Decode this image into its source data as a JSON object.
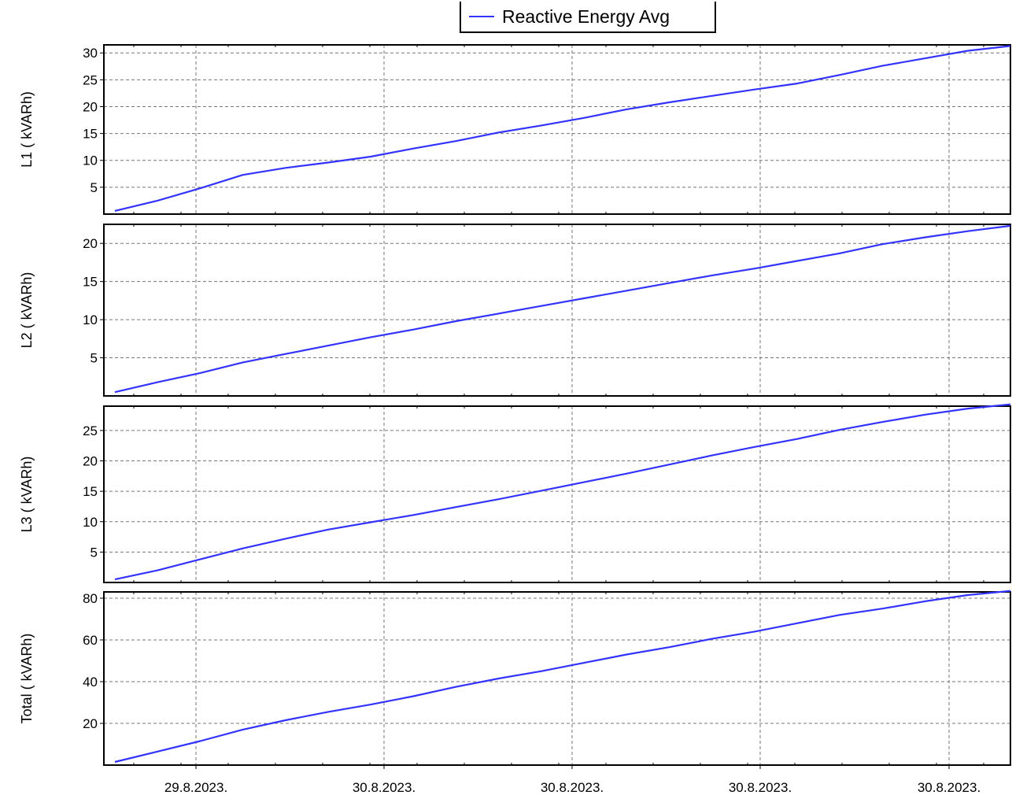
{
  "legend": {
    "label": "Reactive Energy Avg",
    "color": "#3333ff"
  },
  "chart_data": [
    {
      "type": "line",
      "ylabel": "L1 ( kVARh)",
      "y_ticks": [
        5,
        10,
        15,
        20,
        25,
        30
      ],
      "ylim": [
        0,
        31.5
      ],
      "x_tick_labels": [
        "29.8.2023.",
        "30.8.2023.",
        "30.8.2023.",
        "30.8.2023.",
        "30.8.2023."
      ],
      "series": [
        {
          "values": [
            0.6,
            2.5,
            4.8,
            7.3,
            8.6,
            9.6,
            10.7,
            12.2,
            13.6,
            15.2,
            16.5,
            17.9,
            19.5,
            20.8,
            22.0,
            23.2,
            24.3,
            25.9,
            27.6,
            29.0,
            30.4,
            31.3
          ]
        }
      ]
    },
    {
      "type": "line",
      "ylabel": "L2 ( kVARh)",
      "y_ticks": [
        5,
        10,
        15,
        20
      ],
      "ylim": [
        0,
        22.5
      ],
      "x_tick_labels": [
        "29.8.2023.",
        "30.8.2023.",
        "30.8.2023.",
        "30.8.2023.",
        "30.8.2023."
      ],
      "series": [
        {
          "values": [
            0.5,
            1.8,
            3.0,
            4.4,
            5.5,
            6.6,
            7.7,
            8.7,
            9.8,
            10.8,
            11.8,
            12.8,
            13.8,
            14.8,
            15.8,
            16.7,
            17.7,
            18.7,
            19.9,
            20.8,
            21.6,
            22.3
          ]
        }
      ]
    },
    {
      "type": "line",
      "ylabel": "L3 ( kVARh)",
      "y_ticks": [
        5,
        10,
        15,
        20,
        25
      ],
      "ylim": [
        0,
        29
      ],
      "x_tick_labels": [
        "29.8.2023.",
        "30.8.2023.",
        "30.8.2023.",
        "30.8.2023.",
        "30.8.2023."
      ],
      "series": [
        {
          "values": [
            0.5,
            2.0,
            3.8,
            5.6,
            7.2,
            8.7,
            9.9,
            11.1,
            12.4,
            13.7,
            15.1,
            16.5,
            17.9,
            19.4,
            20.9,
            22.3,
            23.6,
            25.1,
            26.4,
            27.6,
            28.6,
            29.3
          ]
        }
      ]
    },
    {
      "type": "line",
      "ylabel": "Total ( kVARh)",
      "y_ticks": [
        20,
        40,
        60,
        80
      ],
      "ylim": [
        0,
        83
      ],
      "x_tick_labels": [
        "29.8.2023.",
        "30.8.2023.",
        "30.8.2023.",
        "30.8.2023.",
        "30.8.2023."
      ],
      "series": [
        {
          "values": [
            1.5,
            6.5,
            11.5,
            17.0,
            21.5,
            25.5,
            29.0,
            33.0,
            37.5,
            41.5,
            45.0,
            49.0,
            53.0,
            56.5,
            60.5,
            64.0,
            68.0,
            72.0,
            75.0,
            78.5,
            81.5,
            83.5
          ]
        }
      ]
    }
  ]
}
